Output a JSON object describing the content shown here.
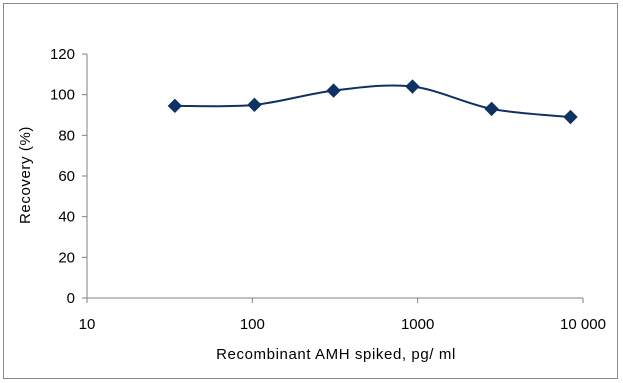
{
  "chart_data": {
    "type": "line",
    "xlabel": "Recombinant AMH spiked, pg/ ml",
    "ylabel": "Recovery  (%)",
    "x_scale": "log",
    "xlim": [
      10,
      10000
    ],
    "ylim": [
      0,
      120
    ],
    "x_ticks": [
      10,
      100,
      1000,
      10000
    ],
    "x_tick_labels": [
      "10",
      "100",
      "1000",
      "10 000"
    ],
    "y_ticks": [
      0,
      20,
      40,
      60,
      80,
      100,
      120
    ],
    "y_tick_labels": [
      "0",
      "20",
      "40",
      "60",
      "80",
      "100",
      "120"
    ],
    "grid": false,
    "legend": "none",
    "line_style": "smooth",
    "marker": "diamond",
    "series": [
      {
        "color": "#0f3264",
        "x": [
          34,
          103,
          310,
          930,
          2800,
          8400
        ],
        "y": [
          94.5,
          95,
          102,
          104,
          93,
          89
        ]
      }
    ]
  }
}
